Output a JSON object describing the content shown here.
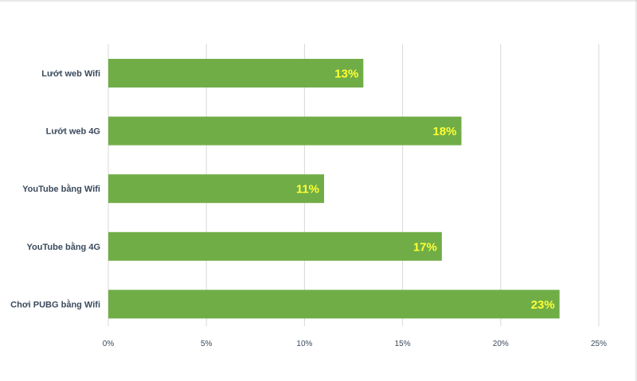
{
  "chart_data": {
    "type": "bar",
    "orientation": "horizontal",
    "categories": [
      "Lướt web Wifi",
      "Lướt web 4G",
      "YouTube bằng Wifi",
      "YouTube bằng 4G",
      "Chơi PUBG bằng Wifi"
    ],
    "values": [
      13,
      18,
      11,
      17,
      23
    ],
    "value_labels": [
      "13%",
      "18%",
      "11%",
      "17%",
      "23%"
    ],
    "x_ticks": [
      0,
      5,
      10,
      15,
      20,
      25
    ],
    "x_tick_labels": [
      "0%",
      "5%",
      "10%",
      "15%",
      "20%",
      "25%"
    ],
    "xlim": [
      0,
      25
    ],
    "grid": true,
    "legend": "none",
    "colors": {
      "bar": "#70ad47",
      "data_label": "#ffff33",
      "grid": "#d9d9d9",
      "text": "#3a4a5c",
      "frame": "#d0d0d0"
    }
  }
}
